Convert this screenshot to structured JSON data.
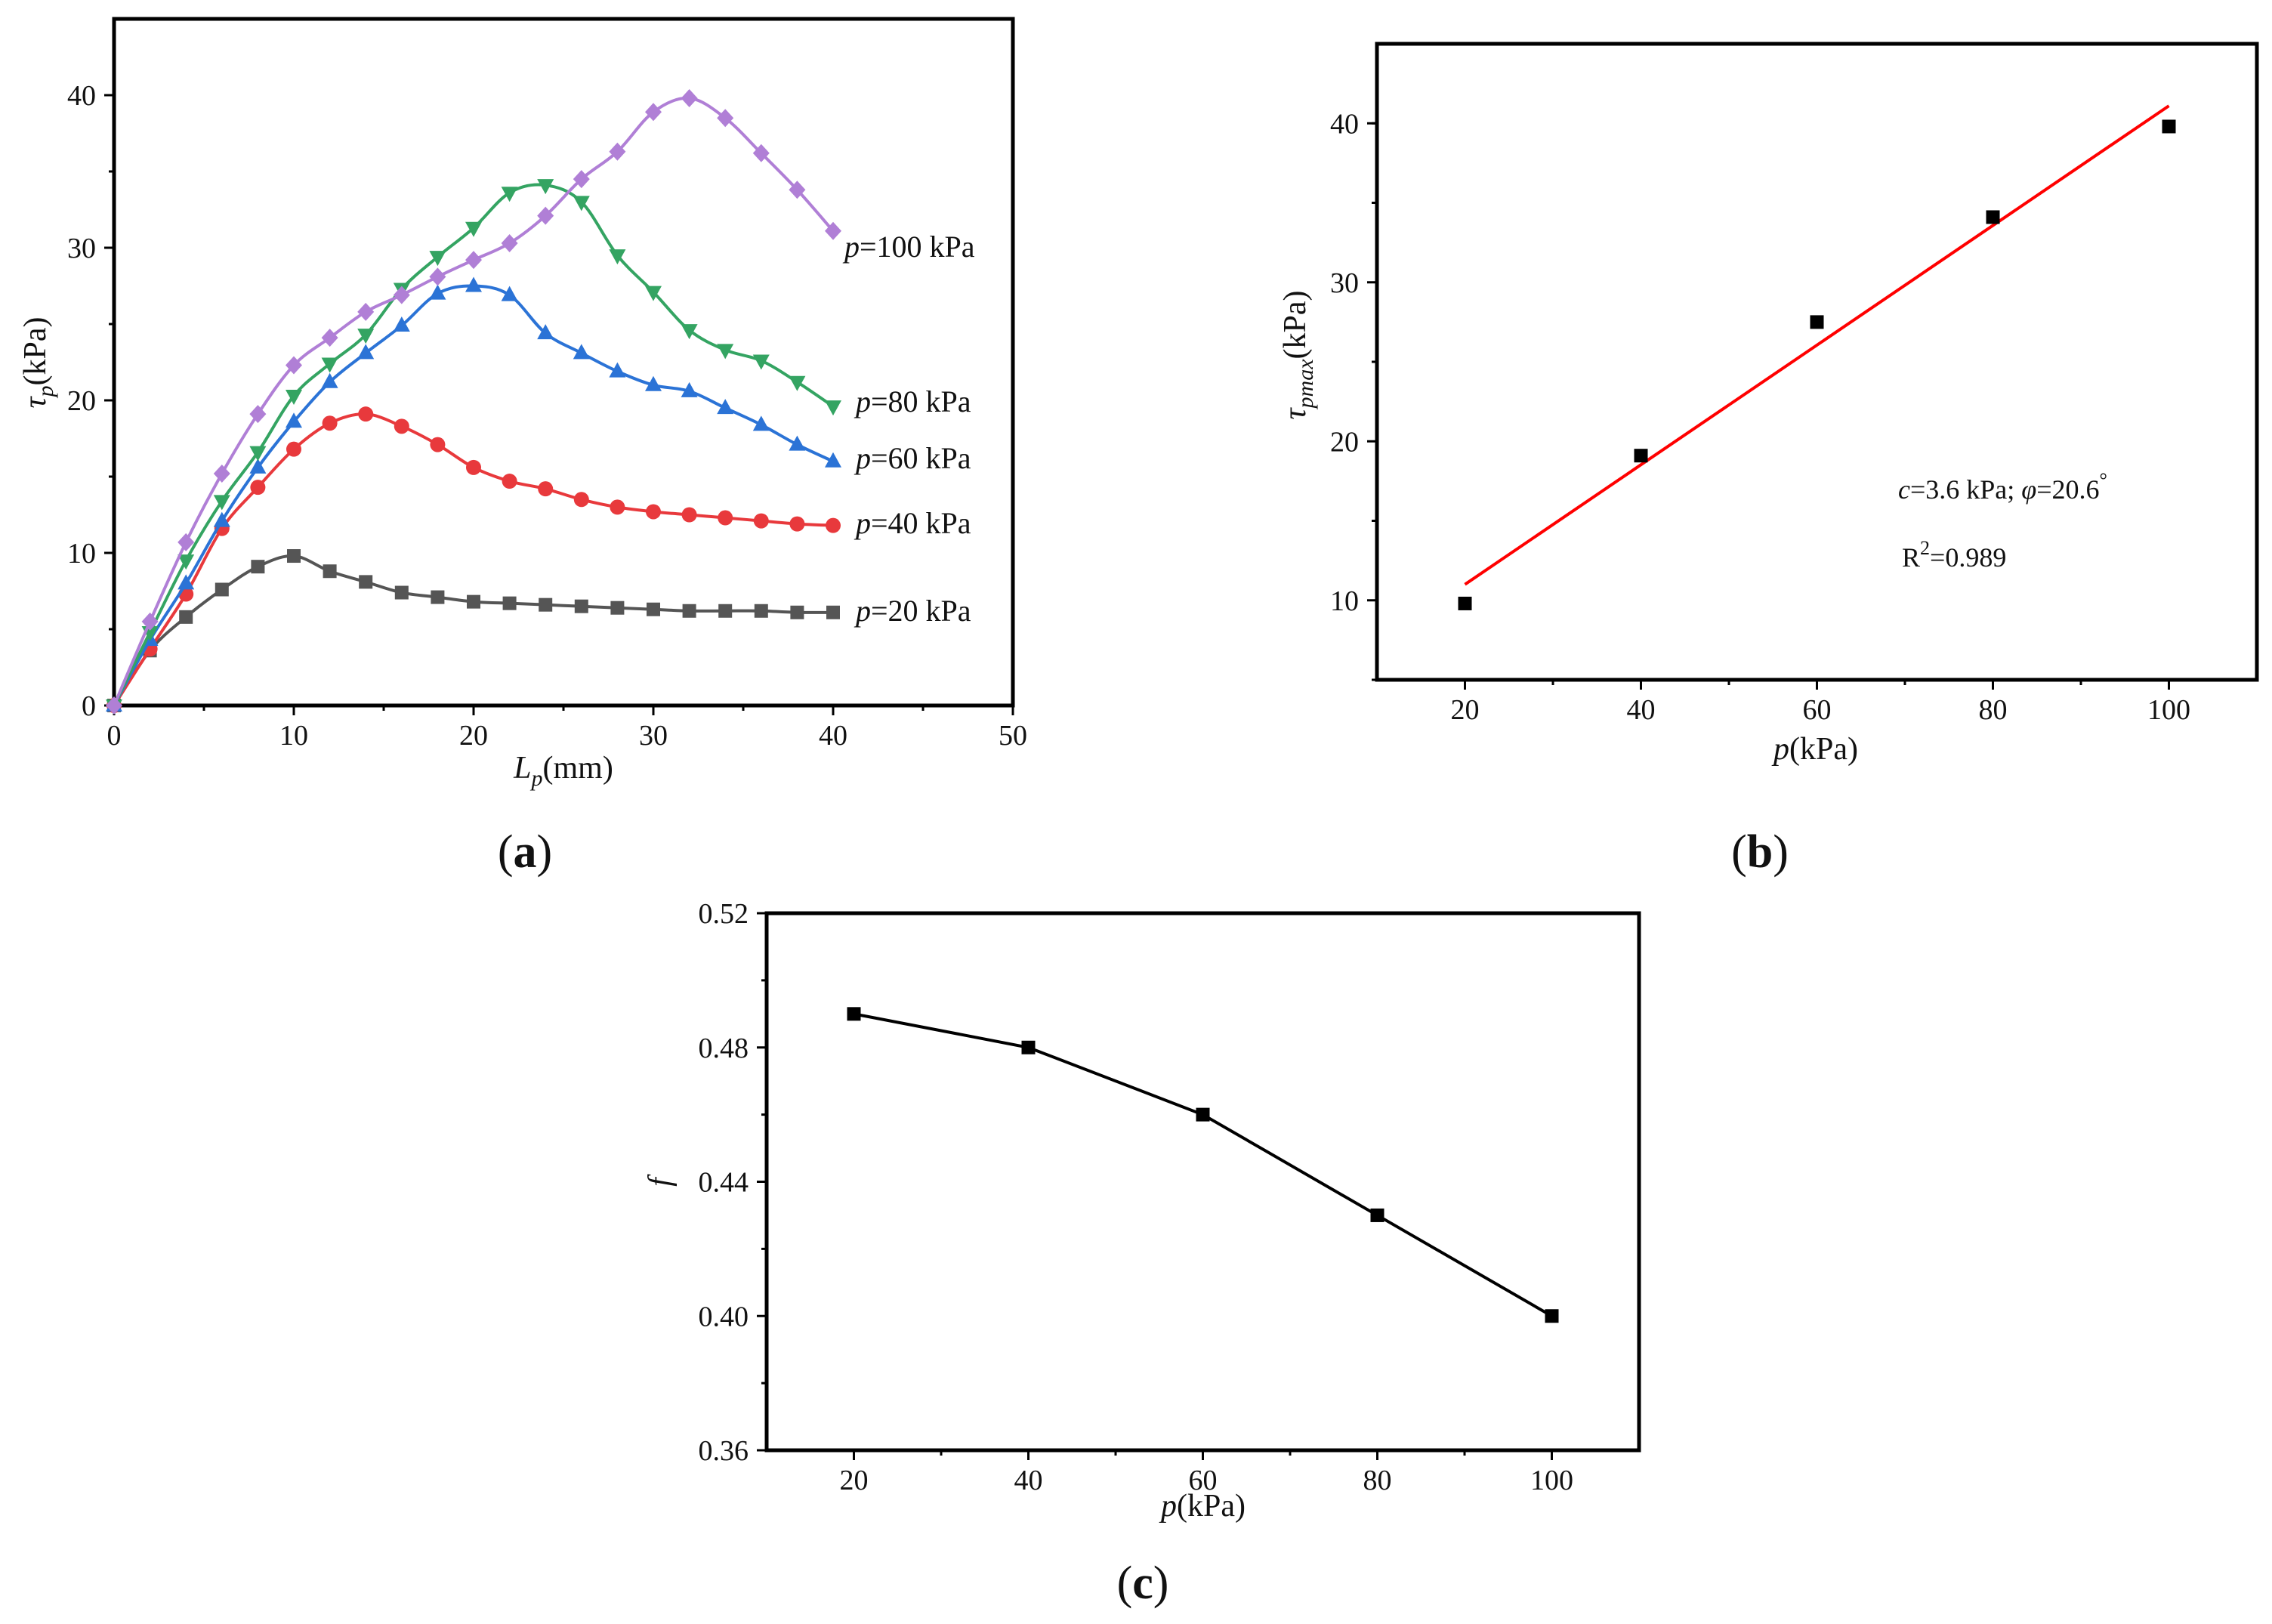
{
  "panels": {
    "a": {
      "label_letter": "a",
      "series_label_prefix": "p",
      "series_label_suffix": "="
    },
    "b": {
      "label_letter": "b",
      "annotation_line1": "c=3.6 kPa; φ=20.6°",
      "annotation_c_symbol": "c",
      "annotation_c_text": "=3.6 kPa; ",
      "annotation_phi_symbol": "φ",
      "annotation_phi_text": "=20.6",
      "annotation_degree": "°",
      "annotation_r2_base": "R",
      "annotation_r2_exp": "2",
      "annotation_r2_value": "=0.989"
    },
    "c": {
      "label_letter": "c"
    }
  },
  "chart_data": [
    {
      "id": "a",
      "type": "line",
      "title": "",
      "xlabel": "Lp(mm)",
      "xlabel_symbol": "L",
      "xlabel_sub": "p",
      "xlabel_unit": "(mm)",
      "ylabel": "τp(kPa)",
      "ylabel_symbol": "τ",
      "ylabel_sub": "p",
      "ylabel_unit": "(kPa)",
      "xlim": [
        0,
        50
      ],
      "ylim": [
        0,
        45
      ],
      "xticks": [
        0,
        10,
        20,
        30,
        40,
        50
      ],
      "yticks": [
        0,
        10,
        20,
        30,
        40
      ],
      "x": [
        0,
        2,
        4,
        6,
        8,
        10,
        12,
        14,
        16,
        18,
        20,
        22,
        24,
        26,
        28,
        30,
        32,
        34,
        36,
        38,
        40
      ],
      "series": [
        {
          "name": "p=20 kPa",
          "label": "20 kPa",
          "color": "#555555",
          "marker": "square",
          "values": [
            0,
            3.6,
            5.8,
            7.6,
            9.1,
            9.8,
            8.8,
            8.1,
            7.4,
            7.1,
            6.8,
            6.7,
            6.6,
            6.5,
            6.4,
            6.3,
            6.2,
            6.2,
            6.2,
            6.1,
            6.1
          ]
        },
        {
          "name": "p=40 kPa",
          "label": "40 kPa",
          "color": "#e8393c",
          "marker": "circle",
          "values": [
            0,
            3.7,
            7.3,
            11.6,
            14.3,
            16.8,
            18.5,
            19.1,
            18.3,
            17.1,
            15.6,
            14.7,
            14.2,
            13.5,
            13.0,
            12.7,
            12.5,
            12.3,
            12.1,
            11.9,
            11.8
          ]
        },
        {
          "name": "p=60 kPa",
          "label": "60 kPa",
          "color": "#2b73d6",
          "marker": "triangle-up",
          "values": [
            0,
            4.3,
            8.0,
            12.1,
            15.6,
            18.6,
            21.2,
            23.1,
            24.9,
            27.0,
            27.5,
            26.9,
            24.4,
            23.1,
            21.9,
            21.0,
            20.6,
            19.5,
            18.4,
            17.1,
            16.0
          ]
        },
        {
          "name": "p=80 kPa",
          "label": "80 kPa",
          "color": "#34a462",
          "marker": "triangle-down",
          "values": [
            0,
            4.8,
            9.5,
            13.4,
            16.6,
            20.3,
            22.4,
            24.3,
            27.3,
            29.4,
            31.3,
            33.6,
            34.1,
            33.0,
            29.5,
            27.1,
            24.6,
            23.3,
            22.6,
            21.2,
            19.6
          ]
        },
        {
          "name": "p=100 kPa",
          "label": "100 kPa",
          "color": "#b07fd6",
          "marker": "diamond",
          "values": [
            0,
            5.5,
            10.7,
            15.2,
            19.1,
            22.3,
            24.1,
            25.8,
            26.9,
            28.1,
            29.2,
            30.3,
            32.1,
            34.5,
            36.3,
            38.9,
            39.8,
            38.5,
            36.2,
            33.8,
            31.1
          ]
        }
      ]
    },
    {
      "id": "b",
      "type": "scatter",
      "title": "",
      "xlabel": "p(kPa)",
      "xlabel_symbol": "p",
      "xlabel_unit": "(kPa)",
      "ylabel": "τpmax(kPa)",
      "ylabel_symbol": "τ",
      "ylabel_sub": "pmax",
      "ylabel_unit": "(kPa)",
      "xlim": [
        10,
        110
      ],
      "ylim": [
        5,
        45
      ],
      "xticks": [
        20,
        40,
        60,
        80,
        100
      ],
      "yticks": [
        10,
        20,
        30,
        40
      ],
      "x": [
        20,
        40,
        60,
        80,
        100
      ],
      "values": [
        9.8,
        19.1,
        27.5,
        34.1,
        39.8
      ],
      "fit_line": {
        "x": [
          20,
          100
        ],
        "y": [
          11.0,
          41.1
        ],
        "color": "#ff0000"
      },
      "marker_color": "#000000"
    },
    {
      "id": "c",
      "type": "line",
      "title": "",
      "xlabel": "p(kPa)",
      "xlabel_symbol": "p",
      "xlabel_unit": "(kPa)",
      "ylabel": "f",
      "xlim": [
        10,
        110
      ],
      "ylim": [
        0.36,
        0.52
      ],
      "xticks": [
        20,
        40,
        60,
        80,
        100
      ],
      "yticks": [
        0.36,
        0.4,
        0.44,
        0.48,
        0.52
      ],
      "ytick_labels": [
        "0.36",
        "0.40",
        "0.44",
        "0.48",
        "0.52"
      ],
      "x": [
        20,
        40,
        60,
        80,
        100
      ],
      "values": [
        0.49,
        0.48,
        0.46,
        0.43,
        0.4
      ],
      "color": "#000000"
    }
  ]
}
